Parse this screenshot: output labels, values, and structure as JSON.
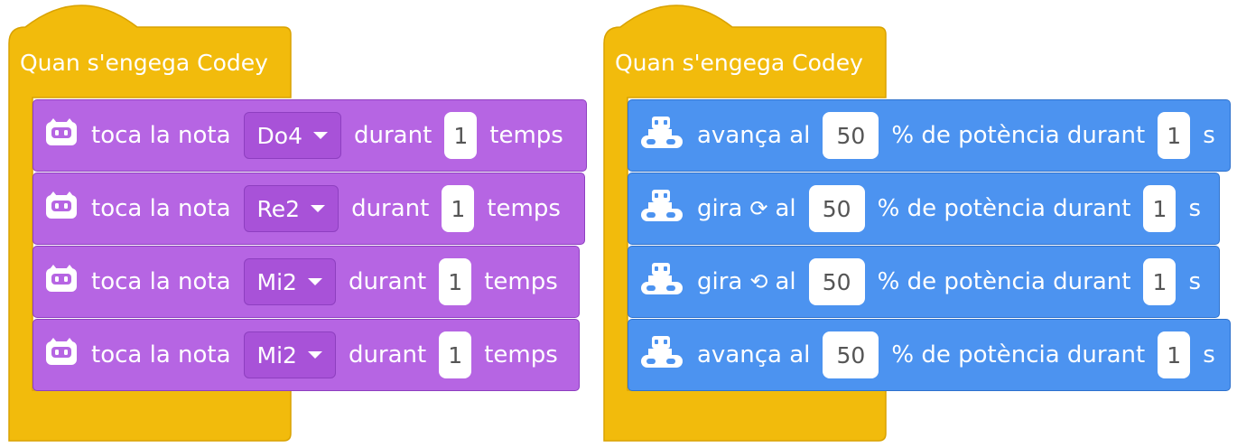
{
  "colors": {
    "hat_yellow": "#f2bb0c",
    "sound_purple": "#b665e3",
    "motion_blue": "#4c93f0"
  },
  "left_script": {
    "hat_label": "Quan s'engega Codey",
    "blocks": [
      {
        "icon": "codey-face-icon",
        "prefix": "toca la nota",
        "note": "Do4",
        "middle": "durant",
        "beats": "1",
        "suffix": "temps"
      },
      {
        "icon": "codey-face-icon",
        "prefix": "toca la nota",
        "note": "Re2",
        "middle": "durant",
        "beats": "1",
        "suffix": "temps"
      },
      {
        "icon": "codey-face-icon",
        "prefix": "toca la nota",
        "note": "Mi2",
        "middle": "durant",
        "beats": "1",
        "suffix": "temps"
      },
      {
        "icon": "codey-face-icon",
        "prefix": "toca la nota",
        "note": "Mi2",
        "middle": "durant",
        "beats": "1",
        "suffix": "temps"
      }
    ]
  },
  "right_script": {
    "hat_label": "Quan s'engega Codey",
    "blocks": [
      {
        "icon": "rocky-robot-icon",
        "prefix": "avança al",
        "rotation": "",
        "rotation_icon": "",
        "power": "50",
        "middle": "% de potència durant",
        "seconds": "1",
        "suffix": "s"
      },
      {
        "icon": "rocky-robot-icon",
        "prefix": "gira",
        "rotation": "⟳",
        "rotation_icon": "rotate-clockwise-icon",
        "after_rotation": "al",
        "power": "50",
        "middle": "% de potència durant",
        "seconds": "1",
        "suffix": "s"
      },
      {
        "icon": "rocky-robot-icon",
        "prefix": "gira",
        "rotation": "⟲",
        "rotation_icon": "rotate-counterclockwise-icon",
        "after_rotation": "al",
        "power": "50",
        "middle": "% de potència durant",
        "seconds": "1",
        "suffix": "s"
      },
      {
        "icon": "rocky-robot-icon",
        "prefix": "avança al",
        "rotation": "",
        "rotation_icon": "",
        "power": "50",
        "middle": "% de potència durant",
        "seconds": "1",
        "suffix": "s"
      }
    ]
  }
}
